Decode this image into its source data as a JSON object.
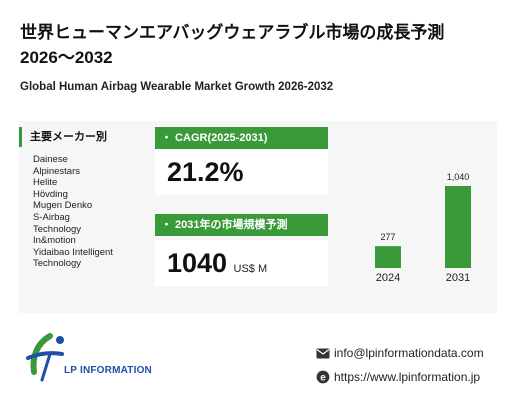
{
  "header": {
    "title_line1": "世界ヒューマンエアバッグウェアラブル市場の成長予測",
    "title_line2": "2026～2032",
    "subtitle": "Global Human Airbag Wearable Market Growth 2026-2032"
  },
  "manufacturers": {
    "heading": "主要メーカー別",
    "items": [
      "Dainese",
      "Alpinestars",
      "Helite",
      "Hövding",
      "Mugen Denko",
      "S-Airbag",
      "Technology",
      "In&motion",
      "Yidaibao Intelligent",
      "Technology"
    ]
  },
  "cagr": {
    "label": "・ CAGR(2025-2031)",
    "value": "21.2%"
  },
  "market_size": {
    "label": "・ 2031年の市場規模予測",
    "value": "1040",
    "unit": "US$ M"
  },
  "colors": {
    "accent": "#3a9a3a",
    "brand": "#1f4fa6",
    "panel": "#f6f6f6"
  },
  "chart_data": {
    "type": "bar",
    "categories": [
      "2024",
      "2031"
    ],
    "values": [
      277,
      1040
    ],
    "value_labels": [
      "277",
      "1,040"
    ],
    "title": "",
    "xlabel": "",
    "ylabel": "",
    "ylim": [
      0,
      1040
    ],
    "grid": false
  },
  "footer": {
    "brand": "LP INFORMATION",
    "email": "info@lpinformationdata.com",
    "website": "https://www.lpinformation.jp",
    "email_icon": "envelope-icon",
    "web_icon": "browser-e-icon",
    "logo_icon": "lp-logo-icon"
  }
}
